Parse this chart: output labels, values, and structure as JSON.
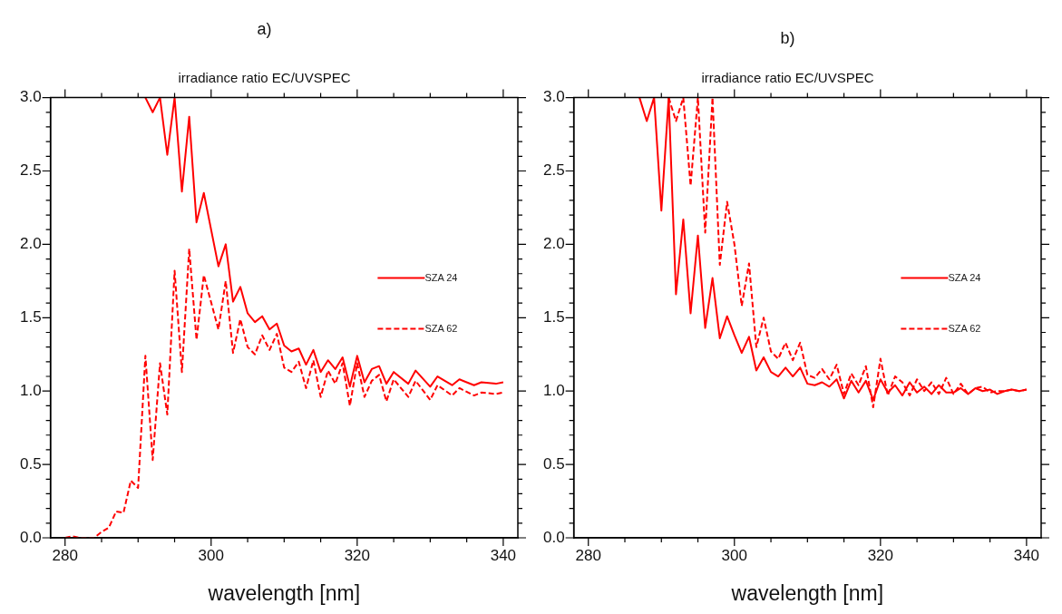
{
  "chart_data": [
    {
      "type": "line",
      "title": "a)",
      "subtitle": "irradiance ratio EC/UVSPEC",
      "xlabel": "wavelength [nm]",
      "xlim": [
        278,
        342
      ],
      "ylim": [
        0,
        3
      ],
      "xticks": [
        280,
        {
          "value": 285,
          "label": null
        },
        {
          "value": 290,
          "label": null
        },
        {
          "value": 295,
          "label": null
        },
        300,
        {
          "value": 305,
          "label": null
        },
        {
          "value": 310,
          "label": null
        },
        {
          "value": 315,
          "label": null
        },
        320,
        {
          "value": 325,
          "label": null
        },
        {
          "value": 330,
          "label": null
        },
        {
          "value": 335,
          "label": null
        },
        340
      ],
      "yticks": [
        {
          "value": 0,
          "label": "0.0"
        },
        {
          "value": 0.1,
          "label": null
        },
        {
          "value": 0.2,
          "label": null
        },
        {
          "value": 0.3,
          "label": null
        },
        {
          "value": 0.4,
          "label": null
        },
        0.5,
        {
          "value": 0.6,
          "label": null
        },
        {
          "value": 0.7,
          "label": null
        },
        {
          "value": 0.8,
          "label": null
        },
        {
          "value": 0.9,
          "label": null
        },
        {
          "value": 1,
          "label": "1.0"
        },
        {
          "value": 1.1,
          "label": null
        },
        {
          "value": 1.2,
          "label": null
        },
        {
          "value": 1.3,
          "label": null
        },
        {
          "value": 1.4,
          "label": null
        },
        1.5,
        {
          "value": 1.6,
          "label": null
        },
        {
          "value": 1.7,
          "label": null
        },
        {
          "value": 1.8,
          "label": null
        },
        {
          "value": 1.9,
          "label": null
        },
        {
          "value": 2,
          "label": "2.0"
        },
        {
          "value": 2.1,
          "label": null
        },
        {
          "value": 2.2,
          "label": null
        },
        {
          "value": 2.3,
          "label": null
        },
        {
          "value": 2.4,
          "label": null
        },
        2.5,
        {
          "value": 2.6,
          "label": null
        },
        {
          "value": 2.7,
          "label": null
        },
        {
          "value": 2.8,
          "label": null
        },
        {
          "value": 2.9,
          "label": null
        },
        {
          "value": 3,
          "label": "3.0"
        }
      ],
      "grid": false,
      "legend": "right",
      "marker": "none",
      "series": [
        {
          "name": "SZA 24",
          "color": "#ff0000",
          "line_style": "solid",
          "x": [
            291,
            292,
            293,
            294,
            295,
            296,
            297,
            298,
            299,
            301,
            302,
            303,
            304,
            305,
            306,
            307,
            308,
            309,
            310,
            311,
            312,
            313,
            314,
            315,
            316,
            317,
            318,
            319,
            320,
            321,
            322,
            323,
            324,
            325,
            327,
            328,
            330,
            331,
            333,
            334,
            336,
            337,
            339,
            340
          ],
          "values": [
            3.0,
            2.9,
            3.0,
            2.61,
            3.0,
            2.36,
            2.87,
            2.15,
            2.35,
            1.85,
            2.0,
            1.61,
            1.71,
            1.53,
            1.47,
            1.51,
            1.42,
            1.46,
            1.31,
            1.27,
            1.29,
            1.18,
            1.28,
            1.13,
            1.21,
            1.15,
            1.23,
            1.03,
            1.24,
            1.06,
            1.15,
            1.17,
            1.05,
            1.13,
            1.05,
            1.14,
            1.03,
            1.1,
            1.04,
            1.08,
            1.04,
            1.06,
            1.05,
            1.06
          ]
        },
        {
          "name": "SZA 62",
          "color": "#ff0000",
          "line_style": "dashed",
          "x": [
            280,
            281,
            282,
            284,
            285,
            286,
            287,
            288,
            289,
            290,
            291,
            292,
            293,
            294,
            295,
            296,
            297,
            298,
            299,
            301,
            302,
            303,
            304,
            305,
            306,
            307,
            308,
            309,
            310,
            311,
            312,
            313,
            314,
            315,
            316,
            317,
            318,
            319,
            320,
            321,
            322,
            323,
            324,
            325,
            327,
            328,
            330,
            331,
            333,
            334,
            336,
            337,
            339,
            340
          ],
          "values": [
            0.0,
            0.01,
            0.0,
            0.0,
            0.04,
            0.07,
            0.18,
            0.17,
            0.39,
            0.34,
            1.24,
            0.53,
            1.19,
            0.84,
            1.82,
            1.13,
            1.97,
            1.35,
            1.79,
            1.42,
            1.75,
            1.26,
            1.49,
            1.3,
            1.25,
            1.38,
            1.28,
            1.39,
            1.16,
            1.13,
            1.2,
            1.02,
            1.21,
            0.96,
            1.14,
            1.05,
            1.19,
            0.9,
            1.19,
            0.96,
            1.07,
            1.11,
            0.93,
            1.08,
            0.96,
            1.07,
            0.94,
            1.04,
            0.97,
            1.02,
            0.97,
            0.99,
            0.98,
            0.99
          ]
        }
      ]
    },
    {
      "type": "line",
      "title": "b)",
      "subtitle": "irradiance ratio EC/UVSPEC",
      "xlabel": "wavelength [nm]",
      "xlim": [
        278,
        342
      ],
      "ylim": [
        0,
        3
      ],
      "xticks": [
        280,
        {
          "value": 285,
          "label": null
        },
        {
          "value": 290,
          "label": null
        },
        {
          "value": 295,
          "label": null
        },
        300,
        {
          "value": 305,
          "label": null
        },
        {
          "value": 310,
          "label": null
        },
        {
          "value": 315,
          "label": null
        },
        320,
        {
          "value": 325,
          "label": null
        },
        {
          "value": 330,
          "label": null
        },
        {
          "value": 335,
          "label": null
        },
        340
      ],
      "yticks": [
        {
          "value": 0,
          "label": "0.0"
        },
        {
          "value": 0.1,
          "label": null
        },
        {
          "value": 0.2,
          "label": null
        },
        {
          "value": 0.3,
          "label": null
        },
        {
          "value": 0.4,
          "label": null
        },
        0.5,
        {
          "value": 0.6,
          "label": null
        },
        {
          "value": 0.7,
          "label": null
        },
        {
          "value": 0.8,
          "label": null
        },
        {
          "value": 0.9,
          "label": null
        },
        {
          "value": 1,
          "label": "1.0"
        },
        {
          "value": 1.1,
          "label": null
        },
        {
          "value": 1.2,
          "label": null
        },
        {
          "value": 1.3,
          "label": null
        },
        {
          "value": 1.4,
          "label": null
        },
        1.5,
        {
          "value": 1.6,
          "label": null
        },
        {
          "value": 1.7,
          "label": null
        },
        {
          "value": 1.8,
          "label": null
        },
        {
          "value": 1.9,
          "label": null
        },
        {
          "value": 2,
          "label": "2.0"
        },
        {
          "value": 2.1,
          "label": null
        },
        {
          "value": 2.2,
          "label": null
        },
        {
          "value": 2.3,
          "label": null
        },
        {
          "value": 2.4,
          "label": null
        },
        2.5,
        {
          "value": 2.6,
          "label": null
        },
        {
          "value": 2.7,
          "label": null
        },
        {
          "value": 2.8,
          "label": null
        },
        {
          "value": 2.9,
          "label": null
        },
        {
          "value": 3,
          "label": "3.0"
        }
      ],
      "grid": false,
      "legend": "right",
      "marker": "none",
      "series": [
        {
          "name": "SZA 24",
          "color": "#ff0000",
          "line_style": "solid",
          "x": [
            287,
            288,
            289,
            290,
            291,
            292,
            293,
            294,
            295,
            296,
            297,
            298,
            299,
            300,
            301,
            302,
            303,
            304,
            305,
            306,
            307,
            308,
            309,
            310,
            311,
            312,
            313,
            314,
            315,
            316,
            317,
            318,
            319,
            320,
            321,
            322,
            323,
            324,
            325,
            326,
            327,
            328,
            329,
            330,
            331,
            332,
            333,
            334,
            335,
            336,
            337,
            338,
            339,
            340
          ],
          "values": [
            3.0,
            2.84,
            3.0,
            2.23,
            3.0,
            1.66,
            2.17,
            1.53,
            2.06,
            1.43,
            1.77,
            1.36,
            1.51,
            1.38,
            1.26,
            1.37,
            1.14,
            1.23,
            1.13,
            1.1,
            1.16,
            1.1,
            1.16,
            1.05,
            1.04,
            1.06,
            1.03,
            1.08,
            0.95,
            1.07,
            0.99,
            1.07,
            0.94,
            1.08,
            0.99,
            1.04,
            0.97,
            1.06,
            0.99,
            1.03,
            0.98,
            1.04,
            0.99,
            0.99,
            1.02,
            0.98,
            1.02,
            1.0,
            1.01,
            0.98,
            1.0,
            1.01,
            1.0,
            1.01
          ]
        },
        {
          "name": "SZA 62",
          "color": "#ff0000",
          "line_style": "dashed",
          "x": [
            291,
            292,
            293,
            294,
            295,
            296,
            297,
            298,
            299,
            300,
            301,
            302,
            303,
            304,
            305,
            306,
            307,
            308,
            309,
            310,
            311,
            312,
            313,
            314,
            315,
            316,
            317,
            318,
            319,
            320,
            321,
            322,
            323,
            324,
            325,
            326,
            327,
            328,
            329,
            330,
            331,
            332,
            333,
            334,
            335,
            336,
            337,
            338,
            339,
            340
          ],
          "values": [
            3.0,
            2.84,
            3.0,
            2.4,
            3.0,
            2.08,
            3.0,
            1.86,
            2.29,
            2.0,
            1.58,
            1.87,
            1.3,
            1.5,
            1.27,
            1.22,
            1.33,
            1.21,
            1.33,
            1.11,
            1.09,
            1.15,
            1.08,
            1.18,
            0.98,
            1.12,
            1.04,
            1.17,
            0.89,
            1.22,
            0.97,
            1.1,
            1.06,
            0.97,
            1.08,
            1.0,
            1.06,
            0.98,
            1.09,
            0.98,
            1.05,
            0.98,
            1.02,
            1.03,
            0.99,
            1.0,
            1.0,
            1.01,
            1.0,
            1.01
          ]
        }
      ]
    }
  ]
}
